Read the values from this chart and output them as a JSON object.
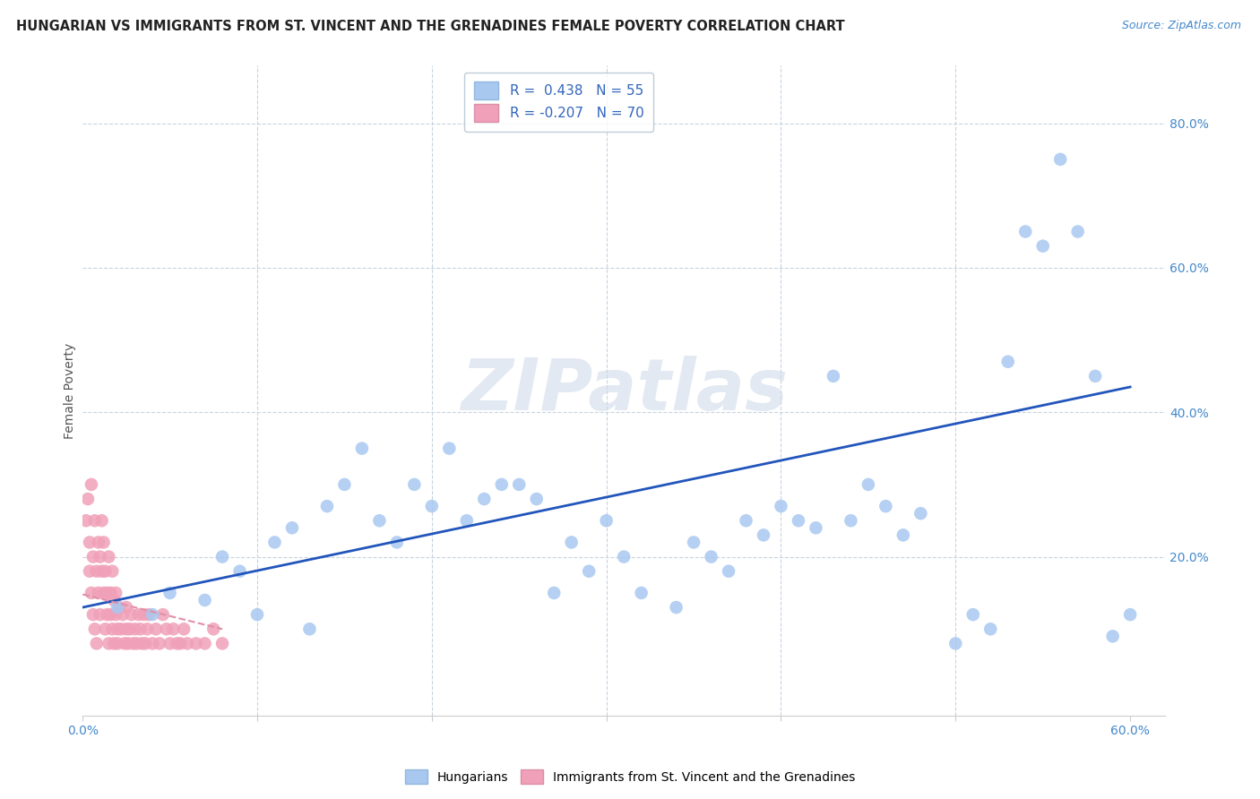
{
  "title": "HUNGARIAN VS IMMIGRANTS FROM ST. VINCENT AND THE GRENADINES FEMALE POVERTY CORRELATION CHART",
  "source": "Source: ZipAtlas.com",
  "ylabel": "Female Poverty",
  "xlim": [
    0.0,
    0.62
  ],
  "ylim": [
    -0.02,
    0.88
  ],
  "blue_R": 0.438,
  "blue_N": 55,
  "pink_R": -0.207,
  "pink_N": 70,
  "blue_color": "#a8c8f0",
  "pink_color": "#f0a0b8",
  "line_color": "#2255bb",
  "pink_line_color": "#e090a8",
  "legend_label_blue": "Hungarians",
  "legend_label_pink": "Immigrants from St. Vincent and the Grenadines",
  "watermark": "ZIPatlas",
  "tick_color": "#4488cc",
  "blue_x": [
    0.02,
    0.04,
    0.05,
    0.07,
    0.08,
    0.09,
    0.1,
    0.11,
    0.12,
    0.13,
    0.14,
    0.15,
    0.16,
    0.17,
    0.18,
    0.19,
    0.2,
    0.21,
    0.22,
    0.23,
    0.24,
    0.25,
    0.26,
    0.27,
    0.28,
    0.29,
    0.3,
    0.31,
    0.32,
    0.34,
    0.35,
    0.36,
    0.37,
    0.38,
    0.39,
    0.4,
    0.41,
    0.42,
    0.43,
    0.44,
    0.45,
    0.46,
    0.47,
    0.48,
    0.5,
    0.51,
    0.52,
    0.53,
    0.54,
    0.55,
    0.56,
    0.57,
    0.58,
    0.59,
    0.6
  ],
  "blue_y": [
    0.13,
    0.12,
    0.15,
    0.14,
    0.2,
    0.18,
    0.12,
    0.22,
    0.24,
    0.1,
    0.27,
    0.3,
    0.35,
    0.25,
    0.22,
    0.3,
    0.27,
    0.35,
    0.25,
    0.28,
    0.3,
    0.3,
    0.28,
    0.15,
    0.22,
    0.18,
    0.25,
    0.2,
    0.15,
    0.13,
    0.22,
    0.2,
    0.18,
    0.25,
    0.23,
    0.27,
    0.25,
    0.24,
    0.45,
    0.25,
    0.3,
    0.27,
    0.23,
    0.26,
    0.08,
    0.12,
    0.1,
    0.47,
    0.65,
    0.63,
    0.75,
    0.65,
    0.45,
    0.09,
    0.12
  ],
  "pink_x": [
    0.002,
    0.003,
    0.004,
    0.004,
    0.005,
    0.005,
    0.006,
    0.006,
    0.007,
    0.007,
    0.008,
    0.008,
    0.009,
    0.009,
    0.01,
    0.01,
    0.011,
    0.011,
    0.012,
    0.012,
    0.013,
    0.013,
    0.014,
    0.014,
    0.015,
    0.015,
    0.016,
    0.016,
    0.017,
    0.017,
    0.018,
    0.018,
    0.019,
    0.019,
    0.02,
    0.02,
    0.021,
    0.022,
    0.023,
    0.024,
    0.025,
    0.025,
    0.026,
    0.027,
    0.028,
    0.029,
    0.03,
    0.031,
    0.032,
    0.033,
    0.034,
    0.035,
    0.036,
    0.037,
    0.038,
    0.04,
    0.042,
    0.044,
    0.046,
    0.048,
    0.05,
    0.052,
    0.054,
    0.056,
    0.058,
    0.06,
    0.065,
    0.07,
    0.075,
    0.08
  ],
  "pink_y": [
    0.25,
    0.28,
    0.22,
    0.18,
    0.3,
    0.15,
    0.2,
    0.12,
    0.25,
    0.1,
    0.18,
    0.08,
    0.22,
    0.15,
    0.2,
    0.12,
    0.25,
    0.18,
    0.15,
    0.22,
    0.1,
    0.18,
    0.12,
    0.15,
    0.2,
    0.08,
    0.15,
    0.12,
    0.18,
    0.1,
    0.14,
    0.08,
    0.15,
    0.12,
    0.1,
    0.08,
    0.13,
    0.1,
    0.12,
    0.08,
    0.1,
    0.13,
    0.08,
    0.1,
    0.12,
    0.08,
    0.1,
    0.08,
    0.12,
    0.1,
    0.08,
    0.12,
    0.08,
    0.1,
    0.12,
    0.08,
    0.1,
    0.08,
    0.12,
    0.1,
    0.08,
    0.1,
    0.08,
    0.08,
    0.1,
    0.08,
    0.08,
    0.08,
    0.1,
    0.08
  ],
  "blue_line_x0": 0.0,
  "blue_line_y0": 0.13,
  "blue_line_x1": 0.6,
  "blue_line_y1": 0.435,
  "pink_line_x0": 0.0,
  "pink_line_y0": 0.148,
  "pink_line_x1": 0.08,
  "pink_line_y1": 0.1
}
